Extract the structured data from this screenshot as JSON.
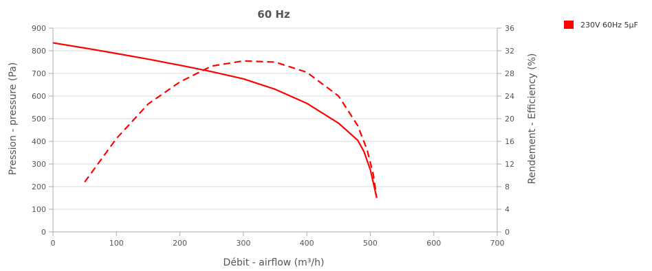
{
  "chart_data": {
    "type": "line",
    "title": "60 Hz",
    "xlabel": "Débit - airflow (m³/h)",
    "ylabel": "Pression - pressure (Pa)",
    "y2label": "Rendement - Efficiency (%)",
    "xlim": [
      0,
      700
    ],
    "ylim": [
      0,
      900
    ],
    "y2lim": [
      0,
      36
    ],
    "x_ticks": [
      0,
      100,
      200,
      300,
      400,
      500,
      600,
      700
    ],
    "y_ticks": [
      0,
      100,
      200,
      300,
      400,
      500,
      600,
      700,
      800,
      900
    ],
    "y2_ticks": [
      0,
      4,
      8,
      12,
      16,
      20,
      24,
      28,
      32,
      36
    ],
    "grid": true,
    "legend_position": "top-right",
    "legend": [
      {
        "label": "230V 60Hz 5µF",
        "color": "#ff0000"
      }
    ],
    "series": [
      {
        "axis": "left",
        "style": "solid",
        "color": "#ff0000",
        "x": [
          0,
          50,
          100,
          150,
          200,
          250,
          300,
          350,
          400,
          450,
          480,
          490,
          500,
          505,
          510
        ],
        "y": [
          835,
          812,
          788,
          763,
          736,
          708,
          676,
          630,
          568,
          480,
          405,
          355,
          275,
          215,
          150
        ]
      },
      {
        "axis": "right",
        "style": "dashed",
        "color": "#ff0000",
        "x": [
          50,
          100,
          150,
          200,
          250,
          300,
          350,
          400,
          450,
          480,
          495,
          505,
          510
        ],
        "y": [
          8.8,
          16.5,
          22.6,
          26.5,
          29.3,
          30.2,
          30.0,
          28.2,
          24.0,
          18.8,
          14.5,
          10.0,
          6.0
        ]
      }
    ]
  }
}
